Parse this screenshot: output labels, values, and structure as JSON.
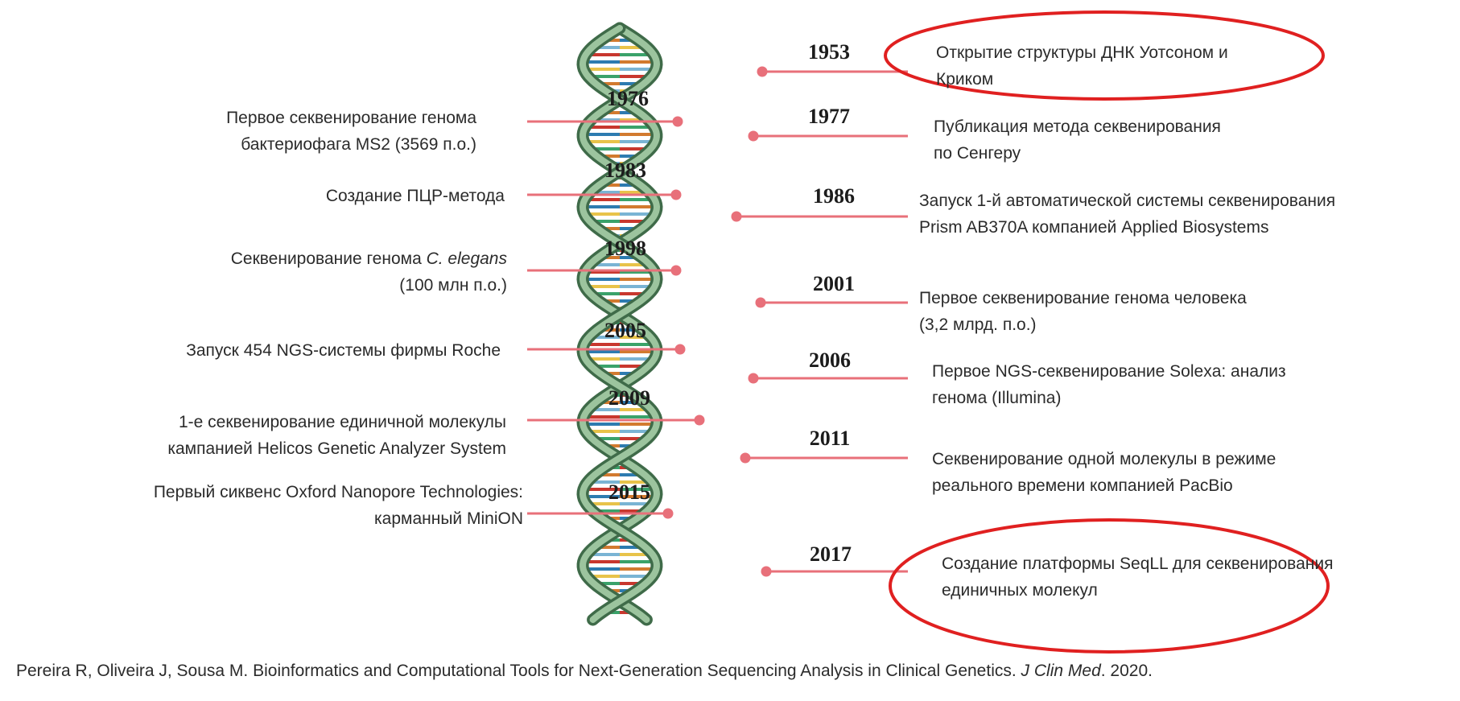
{
  "colors": {
    "connector": "#e8707a",
    "highlight": "#e02020",
    "helix_dark": "#3f6b49",
    "helix_light": "#9cc49e",
    "rung_colors": [
      "#c8372e",
      "#2d7bb0",
      "#e8c34a",
      "#3aa26a",
      "#d27a2f",
      "#7ab4d4"
    ]
  },
  "events": {
    "e1953": {
      "year": "1953",
      "lines": [
        "Открытие структуры ДНК Уотсоном и",
        "Криком"
      ],
      "highlighted": true
    },
    "e1976": {
      "year": "1976",
      "lines": [
        "Первое секвенирование генома",
        "бактериофага  MS2 (3569 п.о.)"
      ]
    },
    "e1977": {
      "year": "1977",
      "lines": [
        "Публикация метода секвенирования",
        "по Сенгеру"
      ]
    },
    "e1983": {
      "year": "1983",
      "lines": [
        "Создание ПЦР-метода"
      ]
    },
    "e1986": {
      "year": "1986",
      "lines": [
        "Запуск 1-й автоматической системы секвенирования",
        "Prism AB370A компанией Applied Biosystems"
      ]
    },
    "e1998": {
      "year": "1998",
      "lines": [
        "Секвенирование генома C. elegans",
        "(100 млн п.о.)"
      ]
    },
    "e2001": {
      "year": "2001",
      "lines": [
        "Первое секвенирование генома человека",
        " (3,2 млрд. п.о.)"
      ]
    },
    "e2005": {
      "year": "2005",
      "lines": [
        "Запуск 454 NGS-системы фирмы Roche"
      ]
    },
    "e2006": {
      "year": "2006",
      "lines": [
        "Первое  NGS-секвенирование Solexa: анализ",
        "генома (Illumina)"
      ]
    },
    "e2009": {
      "year": "2009",
      "lines": [
        "1-е секвенирование единичной молекулы",
        "кампанией  Helicos Genetic Analyzer System"
      ]
    },
    "e2011": {
      "year": "2011",
      "lines": [
        "Секвенирование одной молекулы в режиме",
        "реального времени компанией PacBio"
      ]
    },
    "e2015": {
      "year": "2015",
      "lines": [
        "Первый сиквенс Oxford Nanopore Technologies:",
        "карманный MiniON"
      ]
    },
    "e2017": {
      "year": "2017",
      "lines": [
        "Создание платформы SeqLL для секвенирования",
        "единичных молекул"
      ],
      "highlighted": true
    }
  },
  "citation": {
    "authors": "Pereira R, Oliveira J, Sousa M. Bioinformatics and Computational Tools for Next-Generation Sequencing Analysis in Clinical Genetics.",
    "journal": "J Clin Med",
    "year": ". 2020."
  }
}
